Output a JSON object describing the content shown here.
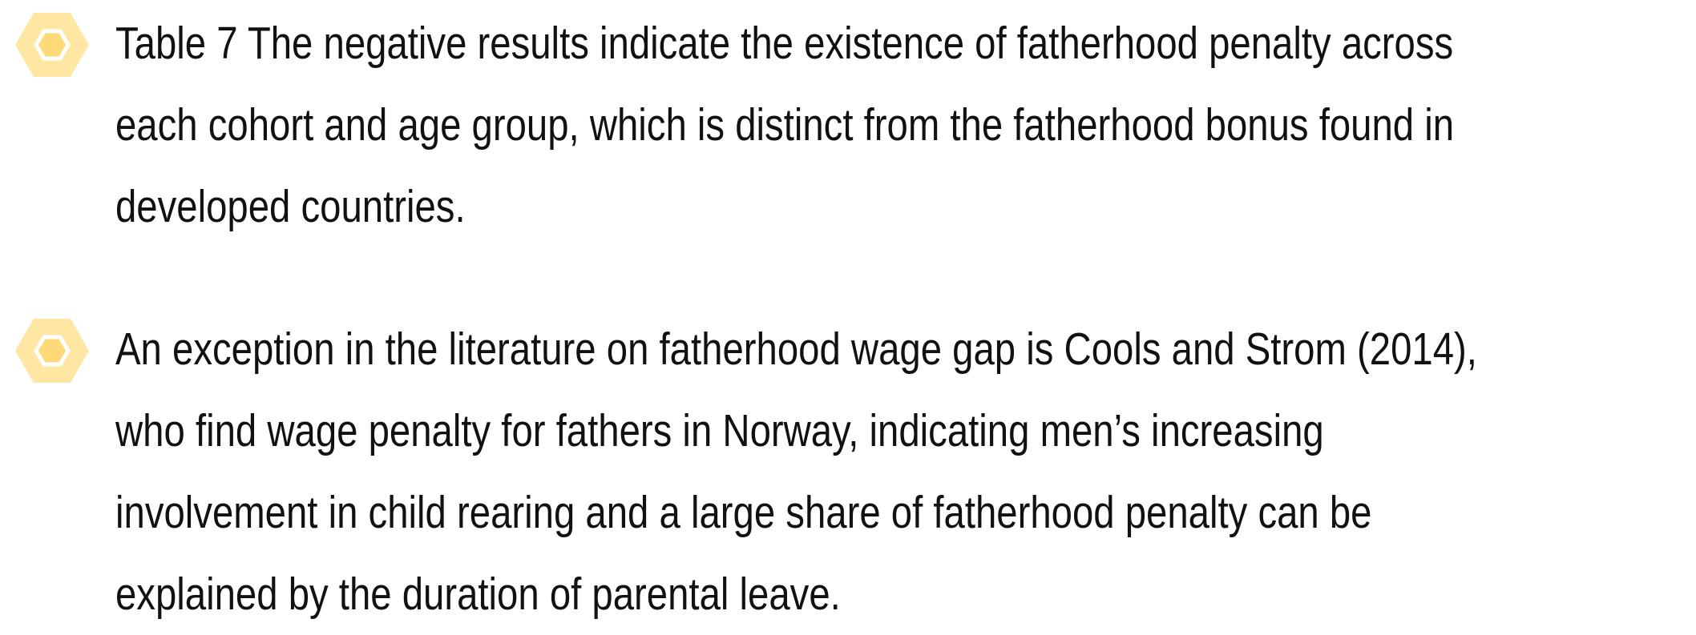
{
  "bullets": [
    {
      "lines": [
        "Table 7 The negative results indicate the existence of fatherhood penalty across",
        "each cohort and age group, which is distinct from the fatherhood bonus found in",
        "developed countries."
      ]
    },
    {
      "lines": [
        "An exception in the literature on fatherhood wage gap is Cools and Strom (2014),",
        "who find wage penalty for fathers in Norway, indicating men’s increasing",
        "involvement in child rearing and a large share of fatherhood penalty can be",
        "explained by the duration of parental leave."
      ]
    }
  ]
}
